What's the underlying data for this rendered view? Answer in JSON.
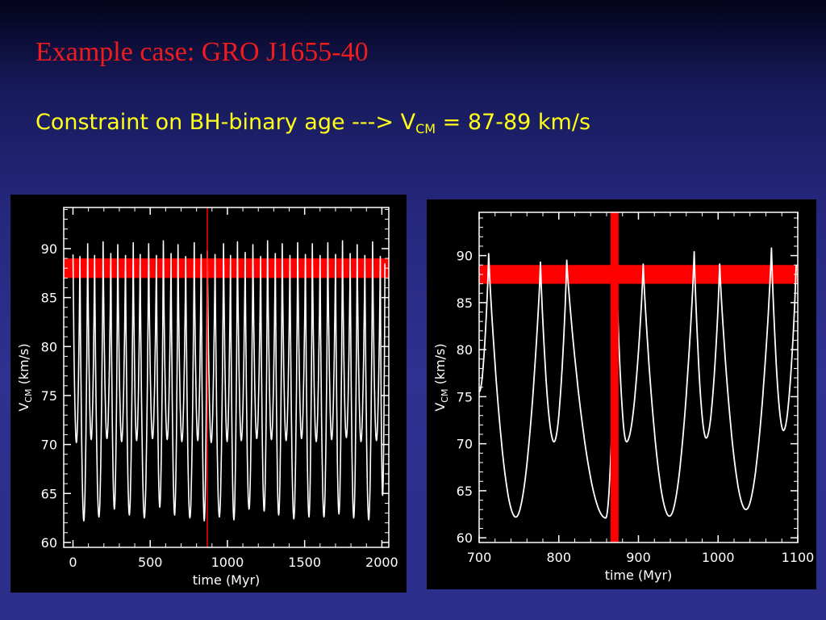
{
  "slide": {
    "title": "Example case: GRO J1655-40",
    "subtitle_main": "Constraint on BH-binary age ---> V",
    "subtitle_sub": "CM",
    "subtitle_tail": " = 87-89 km/s"
  },
  "chart_data": [
    {
      "type": "line",
      "xlabel": "time (Myr)",
      "ylabel_main": "V",
      "ylabel_sub": "CM",
      "ylabel_tail": " (km/s)",
      "xlim": [
        -60,
        2045
      ],
      "ylim": [
        59.5,
        94.2
      ],
      "x_ticks": [
        0,
        500,
        1000,
        1500,
        2000
      ],
      "y_ticks": [
        60,
        65,
        70,
        75,
        80,
        85,
        90
      ],
      "band": {
        "y_min": 87,
        "y_max": 89,
        "color": "#ff0000"
      },
      "vline": {
        "x": 870,
        "color": "#ff0000",
        "width_myr": 5
      },
      "series": [
        {
          "line_color": "#ffffff",
          "peak_times": [
            0,
            45,
            95,
            140,
            195,
            245,
            290,
            340,
            390,
            435,
            490,
            540,
            585,
            635,
            680,
            730,
            785,
            830,
            870,
            920,
            975,
            1020,
            1065,
            1115,
            1165,
            1215,
            1260,
            1310,
            1355,
            1405,
            1455,
            1505,
            1550,
            1600,
            1650,
            1700,
            1745,
            1795,
            1840,
            1890,
            1940,
            1990,
            2020
          ],
          "peak_values": [
            89.4,
            89.2,
            90.5,
            89.3,
            90.7,
            89.5,
            90.4,
            89.3,
            90.6,
            89.4,
            90.5,
            89.3,
            90.8,
            89.5,
            90.4,
            89.2,
            90.6,
            89.4,
            89.8,
            89.4,
            90.5,
            89.3,
            90.7,
            89.6,
            90.4,
            89.2,
            90.8,
            89.5,
            90.5,
            89.3,
            90.6,
            89.4,
            90.5,
            89.3,
            90.6,
            89.4,
            90.8,
            89.5,
            90.4,
            89.3,
            90.7,
            89.2,
            88.5
          ],
          "trough_times": [
            22,
            70,
            118,
            168,
            220,
            268,
            315,
            365,
            412,
            462,
            515,
            562,
            610,
            658,
            705,
            757,
            808,
            850,
            895,
            948,
            998,
            1042,
            1090,
            1140,
            1190,
            1238,
            1285,
            1332,
            1380,
            1430,
            1480,
            1528,
            1575,
            1625,
            1675,
            1722,
            1770,
            1818,
            1865,
            1915,
            1965,
            2005
          ],
          "trough_values": [
            70.2,
            62.2,
            70.5,
            62.6,
            70.6,
            63.4,
            70.3,
            62.8,
            70.4,
            62.5,
            70.6,
            63.6,
            70.5,
            62.8,
            70.3,
            62.5,
            70.4,
            62.2,
            70.2,
            62.6,
            70.3,
            62.3,
            70.4,
            63.4,
            70.6,
            63.2,
            70.5,
            62.8,
            70.4,
            62.4,
            70.6,
            62.6,
            70.3,
            62.6,
            70.5,
            62.9,
            70.7,
            62.5,
            70.3,
            62.3,
            70.4,
            64.8
          ]
        }
      ]
    },
    {
      "type": "line",
      "xlabel": "time (Myr)",
      "ylabel_main": "V",
      "ylabel_sub": "CM",
      "ylabel_tail": " (km/s)",
      "xlim": [
        700,
        1100
      ],
      "ylim": [
        59.5,
        94.6
      ],
      "x_ticks": [
        700,
        800,
        900,
        1000,
        1100
      ],
      "y_ticks": [
        60,
        65,
        70,
        75,
        80,
        85,
        90
      ],
      "band": {
        "y_min": 87,
        "y_max": 89,
        "color": "#ff0000"
      },
      "vline": {
        "x": 870,
        "color": "#ff0000",
        "width_myr": 10
      },
      "series": [
        {
          "line_color": "#ffffff",
          "peak_times": [
            712,
            777,
            810,
            872,
            906,
            970,
            1002,
            1067,
            1098
          ],
          "peak_values": [
            90.2,
            89.3,
            89.5,
            89.8,
            89.1,
            90.4,
            89.1,
            90.8,
            89.0
          ],
          "trough_times": [
            700,
            746,
            794,
            859,
            885,
            939,
            985,
            1035,
            1082
          ],
          "trough_values": [
            75.5,
            62.2,
            70.2,
            62.1,
            70.2,
            62.3,
            70.6,
            63.0,
            71.4
          ]
        }
      ]
    }
  ]
}
